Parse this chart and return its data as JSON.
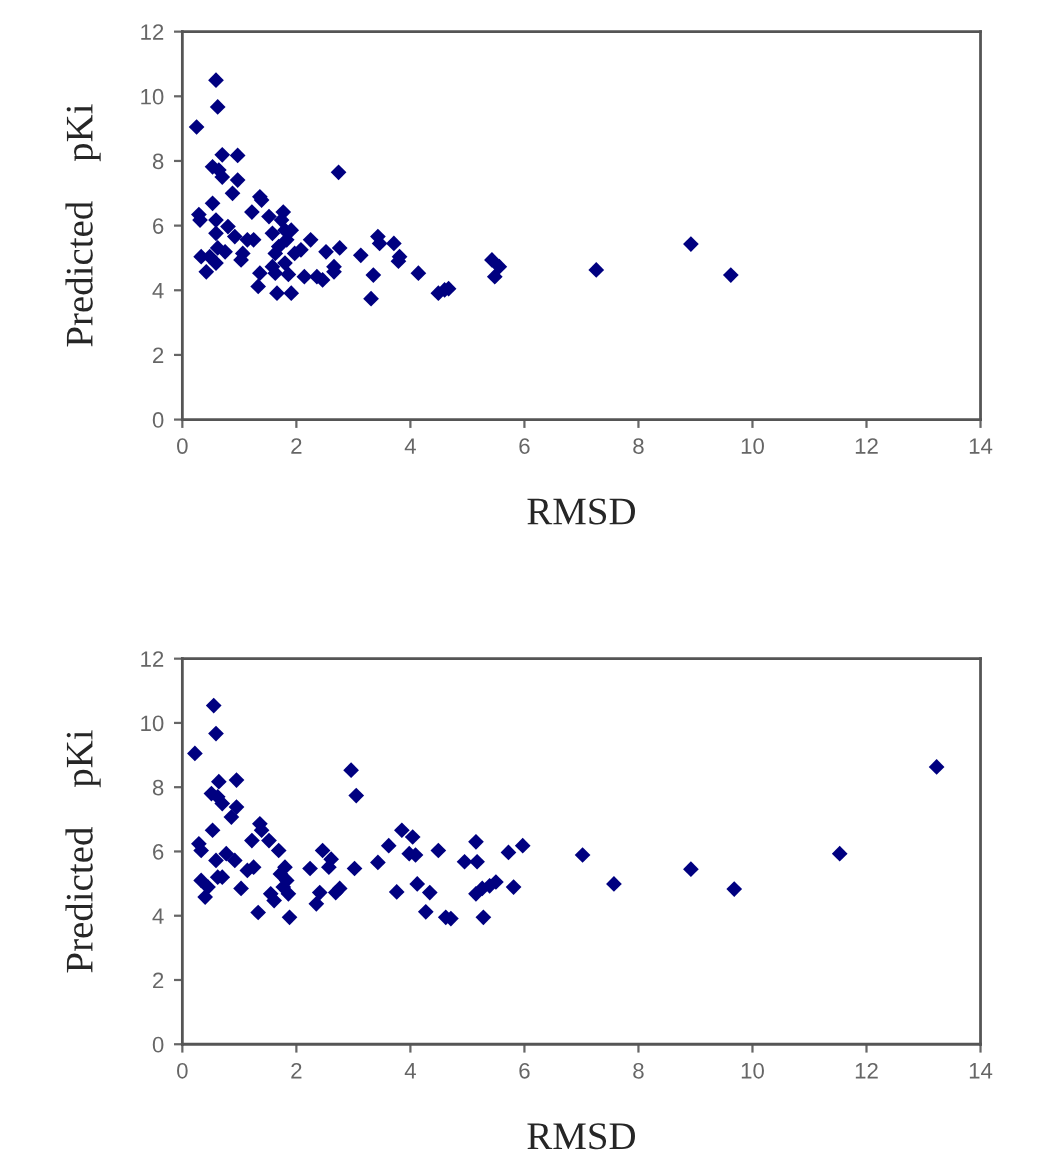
{
  "chart_data": [
    {
      "type": "scatter",
      "xlabel": "RMSD",
      "ylabel": "Predicted    pKi",
      "xlim": [
        0,
        14
      ],
      "xticks": [
        0,
        2,
        4,
        6,
        8,
        10,
        12,
        14
      ],
      "ylim": [
        0,
        12
      ],
      "yticks": [
        0,
        2,
        4,
        6,
        8,
        10,
        12
      ],
      "grid": false,
      "marker": "diamond",
      "series": [
        {
          "color": "#000080",
          "x": [
            0.25,
            0.59,
            0.62,
            0.29,
            0.31,
            0.33,
            0.42,
            0.48,
            0.59,
            0.53,
            0.53,
            0.64,
            0.7,
            0.7,
            0.59,
            0.59,
            0.62,
            0.75,
            0.8,
            0.88,
            0.92,
            0.97,
            0.97,
            1.03,
            1.06,
            1.14,
            1.22,
            1.25,
            1.36,
            1.39,
            1.36,
            1.33,
            1.52,
            1.58,
            1.58,
            1.63,
            1.63,
            1.66,
            1.69,
            1.74,
            1.77,
            1.8,
            1.8,
            1.83,
            1.86,
            1.91,
            1.91,
            1.97,
            2.08,
            2.14,
            2.25,
            2.36,
            2.46,
            2.52,
            2.66,
            2.66,
            2.74,
            2.76,
            3.13,
            3.31,
            3.35,
            3.43,
            3.46,
            3.71,
            3.79,
            3.81,
            4.14,
            4.49,
            4.6,
            4.67,
            5.43,
            5.48,
            5.56,
            7.26,
            8.92,
            9.62
          ],
          "values": [
            9.05,
            10.5,
            9.67,
            6.34,
            6.17,
            5.04,
            4.57,
            5.04,
            4.84,
            6.69,
            7.82,
            7.72,
            7.5,
            8.19,
            6.17,
            5.76,
            5.31,
            5.19,
            5.97,
            7.0,
            5.66,
            8.17,
            7.41,
            4.94,
            5.14,
            5.56,
            6.42,
            5.56,
            6.89,
            6.79,
            4.53,
            4.12,
            6.28,
            5.76,
            4.73,
            5.14,
            4.53,
            3.91,
            5.35,
            6.17,
            6.42,
            5.86,
            4.84,
            5.56,
            4.49,
            3.91,
            5.86,
            5.14,
            5.25,
            4.42,
            5.56,
            4.42,
            4.32,
            5.19,
            4.57,
            4.73,
            7.65,
            5.31,
            5.08,
            3.74,
            4.47,
            5.66,
            5.45,
            5.45,
            4.9,
            5.04,
            4.53,
            3.91,
            4.01,
            4.05,
            4.94,
            4.42,
            4.73,
            4.63,
            5.43,
            4.47
          ]
        }
      ]
    },
    {
      "type": "scatter",
      "xlabel": "RMSD",
      "ylabel": "Predicted    pKi",
      "xlim": [
        0,
        14
      ],
      "xticks": [
        0,
        2,
        4,
        6,
        8,
        10,
        12,
        14
      ],
      "ylim": [
        0,
        12
      ],
      "yticks": [
        0,
        2,
        4,
        6,
        8,
        10,
        12
      ],
      "grid": false,
      "marker": "diamond",
      "series": [
        {
          "color": "#000080",
          "x": [
            0.22,
            0.55,
            0.59,
            0.29,
            0.33,
            0.33,
            0.4,
            0.45,
            0.53,
            0.51,
            0.62,
            0.7,
            0.64,
            0.59,
            0.62,
            0.7,
            0.77,
            0.86,
            0.92,
            0.95,
            0.95,
            1.03,
            1.14,
            1.22,
            1.25,
            1.33,
            1.36,
            1.39,
            1.52,
            1.55,
            1.61,
            1.69,
            1.72,
            1.77,
            1.8,
            1.83,
            1.88,
            1.86,
            2.24,
            2.35,
            2.41,
            2.46,
            2.57,
            2.61,
            2.69,
            2.76,
            2.96,
            3.05,
            3.02,
            3.43,
            3.62,
            3.76,
            3.85,
            3.98,
            4.04,
            4.09,
            4.12,
            4.27,
            4.34,
            4.49,
            4.62,
            4.71,
            4.95,
            5.15,
            5.17,
            5.15,
            5.28,
            5.26,
            5.39,
            5.5,
            5.72,
            5.81,
            5.97,
            7.02,
            7.57,
            8.92,
            9.68,
            11.53,
            13.23
          ],
          "values": [
            9.05,
            10.54,
            9.67,
            6.24,
            6.03,
            5.1,
            4.58,
            4.89,
            6.66,
            7.8,
            7.7,
            7.49,
            8.17,
            5.72,
            5.2,
            5.2,
            5.93,
            7.07,
            5.72,
            8.22,
            7.38,
            4.85,
            5.41,
            6.34,
            5.51,
            4.1,
            6.86,
            6.66,
            6.34,
            4.68,
            4.47,
            6.03,
            5.3,
            4.89,
            5.51,
            5.1,
            3.95,
            4.68,
            5.47,
            4.37,
            4.72,
            6.03,
            5.51,
            5.76,
            4.72,
            4.85,
            8.53,
            7.74,
            5.47,
            5.66,
            6.18,
            4.74,
            6.66,
            5.93,
            6.45,
            5.89,
            4.99,
            4.12,
            4.72,
            6.03,
            3.95,
            3.91,
            5.68,
            6.3,
            5.68,
            4.68,
            3.95,
            4.85,
            4.93,
            5.05,
            5.97,
            4.89,
            6.18,
            5.89,
            4.99,
            5.45,
            4.83,
            5.93,
            8.63
          ]
        }
      ]
    }
  ]
}
